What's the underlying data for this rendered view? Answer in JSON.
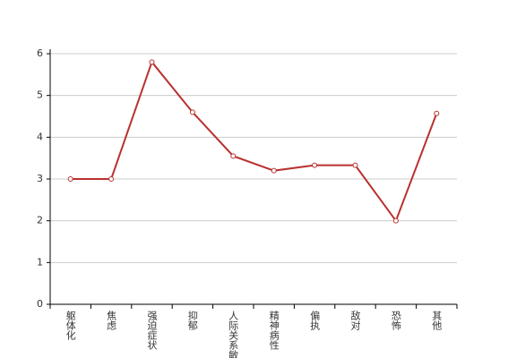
{
  "chart_data": {
    "type": "line",
    "categories": [
      "躯体化",
      "焦虑",
      "强迫症状",
      "抑郁",
      "人际关系敏感",
      "精神病性",
      "偏执",
      "敌对",
      "恐怖",
      "其他"
    ],
    "values": [
      3,
      3,
      5.8,
      4.6,
      3.55,
      3.2,
      3.33,
      3.33,
      2,
      4.57
    ],
    "color": "#b8312f",
    "ylim": [
      0,
      6
    ],
    "yticks": [
      0,
      1,
      2,
      3,
      4,
      5,
      6
    ],
    "grid": true
  }
}
